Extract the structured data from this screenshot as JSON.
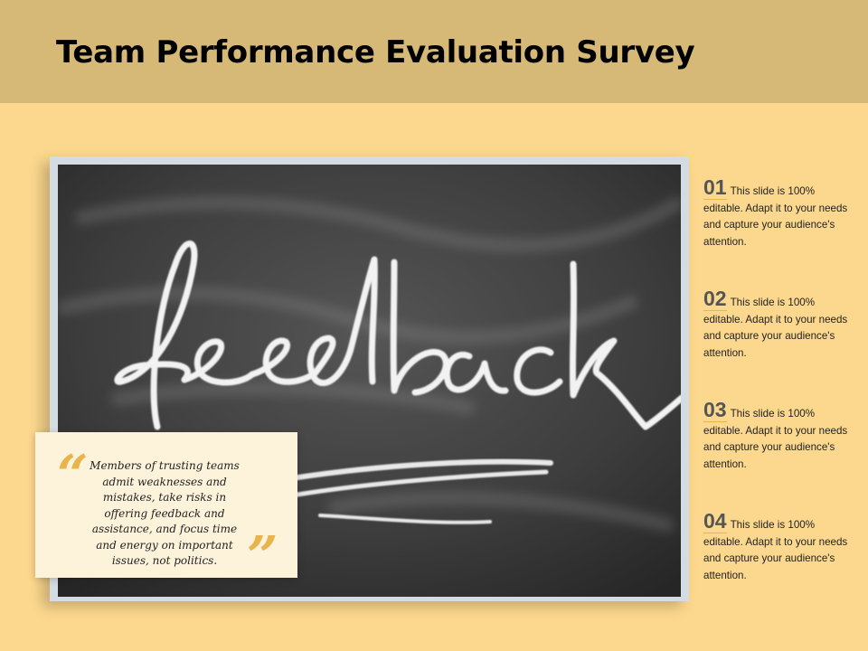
{
  "header": {
    "title": "Team Performance Evaluation Survey"
  },
  "photo": {
    "chalk_word": "feedback"
  },
  "quote": {
    "open_mark": "“",
    "close_mark": "”",
    "text": "Members of trusting teams admit weaknesses and mistakes, take risks in offering feedback and assistance, and focus time and energy on important issues, not politics."
  },
  "items": [
    {
      "number": "01",
      "text": "This slide is 100% editable. Adapt it to your needs and capture your audience's attention."
    },
    {
      "number": "02",
      "text": "This slide is 100% editable. Adapt it to your needs and capture your audience's attention."
    },
    {
      "number": "03",
      "text": "This slide is 100% editable. Adapt it to your needs and capture your audience's attention."
    },
    {
      "number": "04",
      "text": "This slide is 100% editable. Adapt it to your needs and capture your audience's attention."
    }
  ],
  "colors": {
    "background": "#fcd88e",
    "header": "#d6b877",
    "accent": "#e8b54c",
    "chalkboard": "#3a3a3a"
  }
}
